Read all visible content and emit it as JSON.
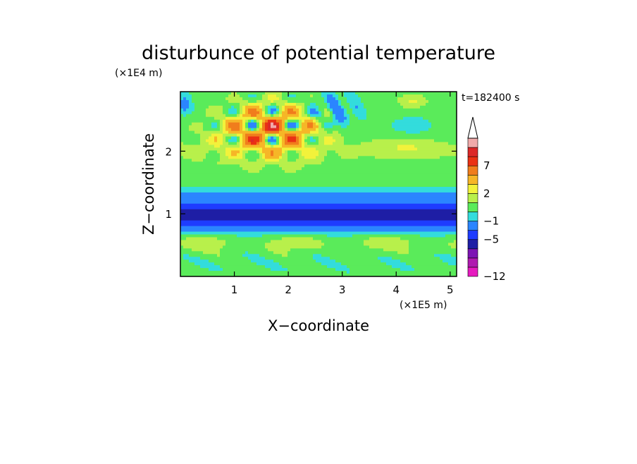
{
  "chart_data": {
    "type": "heatmap",
    "title": "disturbunce of potential temperature",
    "time_label": "t=182400 s",
    "xlabel": "X−coordinate",
    "ylabel": "Z−coordinate",
    "x_scale_label": "(×1E5 m)",
    "y_scale_label": "(×1E4 m)",
    "xlim": [
      0,
      5.12
    ],
    "ylim": [
      0,
      2.95
    ],
    "x_ticks": [
      1,
      2,
      3,
      4,
      5
    ],
    "y_ticks": [
      1,
      2
    ],
    "x_tick_labels": [
      "1",
      "2",
      "3",
      "4",
      "5"
    ],
    "y_tick_labels": [
      "1",
      "2"
    ],
    "colorbar": {
      "levels": [
        -12,
        -10,
        -8,
        -7,
        -5,
        -3,
        -1,
        0,
        1,
        2,
        3,
        5,
        7,
        9,
        11
      ],
      "labeled_ticks": [
        -12,
        -5,
        -1,
        2,
        7
      ],
      "tick_labels": [
        "−12",
        "−5",
        "−1",
        "2",
        "7"
      ],
      "colors": [
        "#e61bbf",
        "#b01ab0",
        "#7d14b4",
        "#1e1ea5",
        "#1e3cff",
        "#2b85ff",
        "#33dcdc",
        "#5aeb5a",
        "#b8f04b",
        "#f2f23b",
        "#f6b627",
        "#f07d1c",
        "#ea3114",
        "#dc2828",
        "#f0aaaa"
      ],
      "extend": "max"
    }
  }
}
